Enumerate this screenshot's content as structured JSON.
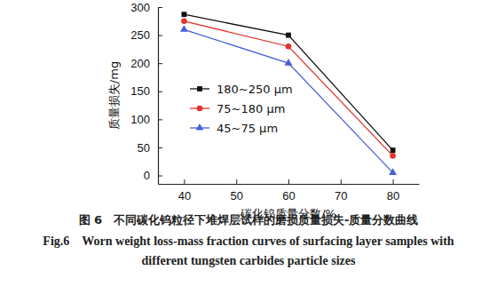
{
  "chart_data": {
    "type": "line",
    "title": "图 6　不同碳化钨粒径下堆焊层试样的磨损质量损失-质量分数曲线",
    "subtitle": "Fig.6　Worn weight loss-mass fraction curves of surfacing layer samples with different tungsten carbides particle sizes",
    "x_label": "碳化钨质量分数/%",
    "y_label": "质量损失/mg",
    "x": [
      40,
      60,
      80
    ],
    "series": [
      {
        "name": "180~250 μm",
        "color": "#111111",
        "marker": "square",
        "values": [
          287,
          250,
          45
        ]
      },
      {
        "name": "75~180 μm",
        "color": "#e0352b",
        "marker": "circle",
        "values": [
          275,
          230,
          35
        ]
      },
      {
        "name": "45~75 μm",
        "color": "#4a5fd8",
        "marker": "triangle",
        "values": [
          260,
          200,
          5
        ]
      }
    ],
    "xlim": [
      35,
      85
    ],
    "xticks": [
      40,
      50,
      60,
      70,
      80
    ],
    "ylim": [
      -15,
      300
    ],
    "yticks": [
      0,
      50,
      100,
      150,
      200,
      250,
      300
    ],
    "legend": "left",
    "grid": false
  }
}
